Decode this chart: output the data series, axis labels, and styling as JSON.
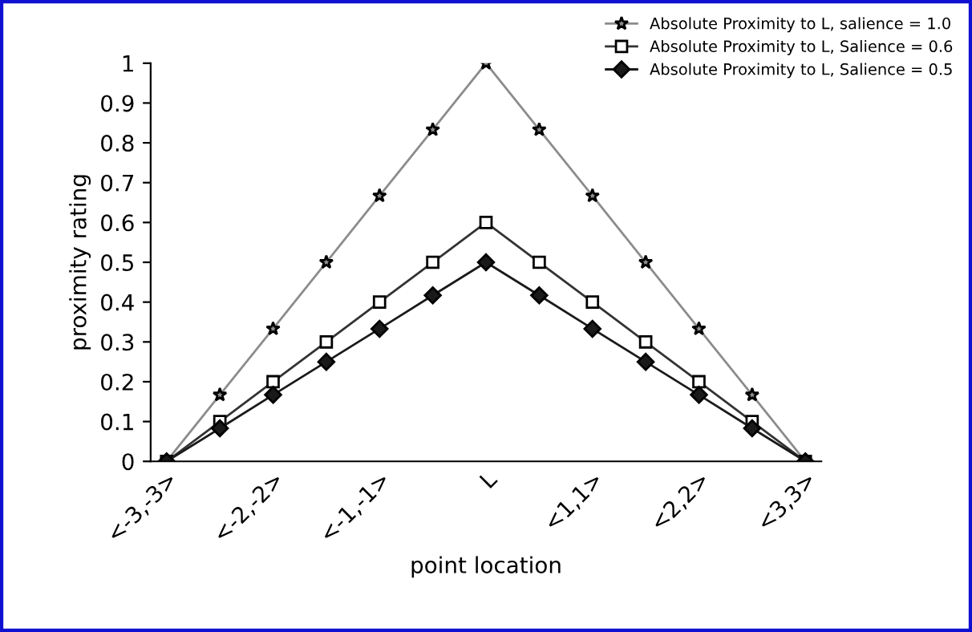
{
  "chart_data": {
    "type": "line",
    "xlabel": "point location",
    "ylabel": "proximity rating",
    "categories": [
      "<-3,-3>",
      null,
      "<-2,-2>",
      null,
      "<-1,-1>",
      null,
      "L",
      null,
      "<1,1>",
      null,
      "<2,2>",
      null,
      "<3,3>"
    ],
    "series": [
      {
        "name": "Absolute Proximity to L, salience = 1.0",
        "color": "#8c8c8c",
        "marker": "star",
        "values": [
          0,
          0.167,
          0.333,
          0.5,
          0.667,
          0.833,
          1,
          0.833,
          0.667,
          0.5,
          0.333,
          0.167,
          0
        ]
      },
      {
        "name": "Absolute Proximity to L, Salience = 0.6",
        "color": "#333333",
        "marker": "square",
        "values": [
          0,
          0.1,
          0.2,
          0.3,
          0.4,
          0.5,
          0.6,
          0.5,
          0.4,
          0.3,
          0.2,
          0.1,
          0
        ]
      },
      {
        "name": "Absolute Proximity to L, Salience = 0.5",
        "color": "#1a1a1a",
        "marker": "diamond",
        "values": [
          0,
          0.083,
          0.167,
          0.25,
          0.333,
          0.417,
          0.5,
          0.417,
          0.333,
          0.25,
          0.167,
          0.083,
          0
        ]
      }
    ],
    "ylim": [
      0,
      1
    ],
    "yticks": [
      0,
      0.1,
      0.2,
      0.3,
      0.4,
      0.5,
      0.6,
      0.7,
      0.8,
      0.9,
      1
    ],
    "grid": false,
    "legend": "top right",
    "line_style": "solid"
  }
}
